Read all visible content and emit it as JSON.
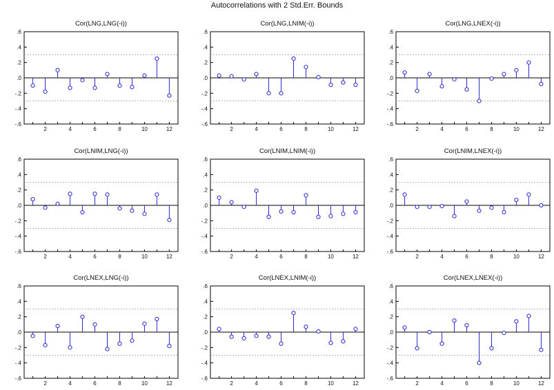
{
  "figure": {
    "title": "Autocorrelations with 2 Std.Err. Bounds"
  },
  "chart_data": [
    {
      "type": "lollipop",
      "title": "Cor(LNG,LNG(-i))",
      "x": [
        1,
        2,
        3,
        4,
        5,
        6,
        7,
        8,
        9,
        10,
        11,
        12
      ],
      "values": [
        -0.1,
        -0.18,
        0.1,
        -0.13,
        -0.03,
        -0.13,
        0.05,
        -0.1,
        -0.12,
        0.03,
        0.25,
        -0.23
      ],
      "ylim": [
        -0.6,
        0.6
      ],
      "yticks": [
        "-.6",
        "-.4",
        "-.2",
        ".0",
        ".2",
        ".4",
        ".6"
      ],
      "xticks": [
        2,
        4,
        6,
        8,
        10,
        12
      ],
      "bounds": [
        -0.3,
        0.3
      ]
    },
    {
      "type": "lollipop",
      "title": "Cor(LNG,LNIM(-i))",
      "x": [
        1,
        2,
        3,
        4,
        5,
        6,
        7,
        8,
        9,
        10,
        11,
        12
      ],
      "values": [
        0.03,
        0.02,
        -0.02,
        0.05,
        -0.2,
        -0.2,
        0.25,
        0.14,
        0.01,
        -0.09,
        -0.06,
        -0.09
      ],
      "ylim": [
        -0.6,
        0.6
      ],
      "yticks": [
        "-.6",
        "-.4",
        "-.2",
        ".0",
        ".2",
        ".4",
        ".6"
      ],
      "xticks": [
        2,
        4,
        6,
        8,
        10,
        12
      ],
      "bounds": [
        -0.3,
        0.3
      ]
    },
    {
      "type": "lollipop",
      "title": "Cor(LNG,LNEX(-i))",
      "x": [
        1,
        2,
        3,
        4,
        5,
        6,
        7,
        8,
        9,
        10,
        11,
        12
      ],
      "values": [
        0.07,
        -0.17,
        0.05,
        -0.11,
        -0.02,
        -0.15,
        -0.3,
        -0.01,
        0.05,
        0.1,
        0.2,
        -0.08
      ],
      "ylim": [
        -0.6,
        0.6
      ],
      "yticks": [
        "-.6",
        "-.4",
        "-.2",
        ".0",
        ".2",
        ".4",
        ".6"
      ],
      "xticks": [
        2,
        4,
        6,
        8,
        10,
        12
      ],
      "bounds": [
        -0.3,
        0.3
      ]
    },
    {
      "type": "lollipop",
      "title": "Cor(LNIM,LNG(-i))",
      "x": [
        1,
        2,
        3,
        4,
        5,
        6,
        7,
        8,
        9,
        10,
        11,
        12
      ],
      "values": [
        0.08,
        -0.03,
        0.02,
        0.15,
        -0.09,
        0.15,
        0.14,
        -0.04,
        -0.07,
        -0.11,
        0.14,
        -0.19
      ],
      "ylim": [
        -0.6,
        0.6
      ],
      "yticks": [
        "-.6",
        "-.4",
        "-.2",
        ".0",
        ".2",
        ".4",
        ".6"
      ],
      "xticks": [
        2,
        4,
        6,
        8,
        10,
        12
      ],
      "bounds": [
        -0.3,
        0.3
      ]
    },
    {
      "type": "lollipop",
      "title": "Cor(LNIM,LNIM(-i))",
      "x": [
        1,
        2,
        3,
        4,
        5,
        6,
        7,
        8,
        9,
        10,
        11,
        12
      ],
      "values": [
        0.1,
        0.04,
        -0.02,
        0.19,
        -0.15,
        -0.08,
        -0.09,
        0.13,
        -0.15,
        -0.14,
        -0.11,
        -0.09
      ],
      "ylim": [
        -0.6,
        0.6
      ],
      "yticks": [
        "-.6",
        "-.4",
        "-.2",
        ".0",
        ".2",
        ".4",
        ".6"
      ],
      "xticks": [
        2,
        4,
        6,
        8,
        10,
        12
      ],
      "bounds": [
        -0.3,
        0.3
      ]
    },
    {
      "type": "lollipop",
      "title": "Cor(LNIM,LNEX(-i))",
      "x": [
        1,
        2,
        3,
        4,
        5,
        6,
        7,
        8,
        9,
        10,
        11,
        12
      ],
      "values": [
        0.14,
        -0.02,
        -0.02,
        -0.01,
        -0.14,
        0.05,
        -0.07,
        -0.03,
        -0.09,
        0.07,
        0.14,
        0.0
      ],
      "ylim": [
        -0.6,
        0.6
      ],
      "yticks": [
        "-.6",
        "-.4",
        "-.2",
        ".0",
        ".2",
        ".4",
        ".6"
      ],
      "xticks": [
        2,
        4,
        6,
        8,
        10,
        12
      ],
      "bounds": [
        -0.3,
        0.3
      ]
    },
    {
      "type": "lollipop",
      "title": "Cor(LNEX,LNG(-i))",
      "x": [
        1,
        2,
        3,
        4,
        5,
        6,
        7,
        8,
        9,
        10,
        11,
        12
      ],
      "values": [
        -0.05,
        -0.17,
        0.08,
        -0.2,
        0.2,
        0.1,
        -0.22,
        -0.15,
        -0.11,
        0.11,
        0.17,
        -0.18
      ],
      "ylim": [
        -0.6,
        0.6
      ],
      "yticks": [
        "-.6",
        "-.4",
        "-.2",
        ".0",
        ".2",
        ".4",
        ".6"
      ],
      "xticks": [
        2,
        4,
        6,
        8,
        10,
        12
      ],
      "bounds": [
        -0.3,
        0.3
      ]
    },
    {
      "type": "lollipop",
      "title": "Cor(LNEX,LNIM(-i))",
      "x": [
        1,
        2,
        3,
        4,
        5,
        6,
        7,
        8,
        9,
        10,
        11,
        12
      ],
      "values": [
        0.04,
        -0.06,
        -0.08,
        -0.05,
        -0.06,
        -0.15,
        0.25,
        0.07,
        0.01,
        -0.14,
        -0.12,
        0.04
      ],
      "ylim": [
        -0.6,
        0.6
      ],
      "yticks": [
        "-.6",
        "-.4",
        "-.2",
        ".0",
        ".2",
        ".4",
        ".6"
      ],
      "xticks": [
        2,
        4,
        6,
        8,
        10,
        12
      ],
      "bounds": [
        -0.3,
        0.3
      ]
    },
    {
      "type": "lollipop",
      "title": "Cor(LNEX,LNEX(-i))",
      "x": [
        1,
        2,
        3,
        4,
        5,
        6,
        7,
        8,
        9,
        10,
        11,
        12
      ],
      "values": [
        0.06,
        -0.21,
        0.0,
        -0.15,
        0.15,
        0.09,
        -0.4,
        -0.21,
        -0.01,
        0.14,
        0.21,
        -0.23
      ],
      "ylim": [
        -0.6,
        0.6
      ],
      "yticks": [
        "-.6",
        "-.4",
        "-.2",
        ".0",
        ".2",
        ".4",
        ".6"
      ],
      "xticks": [
        2,
        4,
        6,
        8,
        10,
        12
      ],
      "bounds": [
        -0.3,
        0.3
      ]
    }
  ],
  "style": {
    "stem_color": "#2a2acc",
    "marker_fill": "#ffffff",
    "axis_color": "#000000",
    "bound_color": "#9a9a9a",
    "text_color": "#111111"
  }
}
